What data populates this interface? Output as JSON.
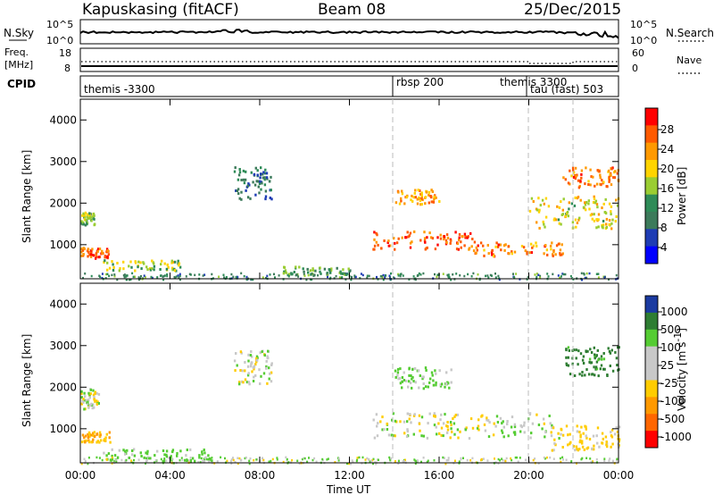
{
  "header": {
    "station": "Kapuskasing (fitACF)",
    "beam": "Beam 08",
    "date": "25/Dec/2015"
  },
  "sky_panel": {
    "left_label": "N.Sky",
    "right_label": "N.Search",
    "left_ticks": [
      "10^5",
      "10^0"
    ],
    "right_ticks": [
      "10^5",
      "10^0"
    ]
  },
  "freq_panel": {
    "left_label_1": "Freq.",
    "left_label_2": "[MHz]",
    "right_label": "Nave",
    "left_ticks": [
      "18",
      "8"
    ],
    "right_ticks": [
      "60",
      "0"
    ]
  },
  "cpid_panel": {
    "label": "CPID",
    "modes": [
      {
        "name": "themis -3300",
        "start_hour": 0.0
      },
      {
        "name": "rbsp 200",
        "start_hour": 14.0
      },
      {
        "name": "themis 3300",
        "start_hour": 20.0
      },
      {
        "name": "tau (fast) 503",
        "start_hour": 20.0
      }
    ]
  },
  "power_colorbar": {
    "label": "Power [dB]",
    "ticks": [
      "28",
      "24",
      "20",
      "16",
      "12",
      "8",
      "4"
    ],
    "colors": [
      "#ff0000",
      "#ff5a00",
      "#ff9900",
      "#ffd400",
      "#9acd32",
      "#2e8b57",
      "#3c7a5a",
      "#1e3cb4",
      "#0000ff"
    ]
  },
  "velocity_colorbar": {
    "label": "Velocity [m s",
    "label_sup": "-1",
    "label_end": "]",
    "ticks": [
      "1000",
      "500",
      "100",
      "25",
      "-25",
      "-100",
      "-500",
      "-1000"
    ],
    "colors": [
      "#1a3aa0",
      "#2e7d32",
      "#55cc33",
      "#c8c8c8",
      "#c8c8c8",
      "#ffcc00",
      "#ff9900",
      "#ff6600",
      "#ff0000"
    ]
  },
  "axes": {
    "y_label": "Slant Range [km]",
    "x_label": "Time UT",
    "y_ticks": [
      "1000",
      "2000",
      "3000",
      "4000"
    ],
    "x_ticks": [
      "00:00",
      "04:00",
      "08:00",
      "12:00",
      "16:00",
      "20:00",
      "00:00"
    ]
  },
  "chart_data": [
    {
      "type": "heatmap",
      "title": "Power [dB]",
      "xlabel": "Time UT",
      "ylabel": "Slant Range [km]",
      "xlim_hours": [
        0,
        24
      ],
      "ylim": [
        180,
        4500
      ],
      "colorbar_range": [
        0,
        30
      ],
      "features": [
        {
          "t0": 0.0,
          "t1": 1.3,
          "r0": 700,
          "r1": 950,
          "level": 26
        },
        {
          "t0": 0.0,
          "t1": 0.6,
          "r0": 1500,
          "r1": 1800,
          "level": 14
        },
        {
          "t0": 1.0,
          "t1": 4.5,
          "r0": 400,
          "r1": 650,
          "level": 16
        },
        {
          "t0": 6.8,
          "t1": 8.5,
          "r0": 2100,
          "r1": 2900,
          "level": 8
        },
        {
          "t0": 9.0,
          "t1": 12.0,
          "r0": 300,
          "r1": 500,
          "level": 12
        },
        {
          "t0": 13.0,
          "t1": 17.5,
          "r0": 900,
          "r1": 1350,
          "level": 26
        },
        {
          "t0": 14.0,
          "t1": 16.0,
          "r0": 2000,
          "r1": 2350,
          "level": 22
        },
        {
          "t0": 17.5,
          "t1": 21.5,
          "r0": 750,
          "r1": 1100,
          "level": 24
        },
        {
          "t0": 21.5,
          "t1": 24.0,
          "r0": 2400,
          "r1": 2900,
          "level": 24
        },
        {
          "t0": 20.0,
          "t1": 24.0,
          "r0": 1400,
          "r1": 2200,
          "level": 18
        }
      ]
    },
    {
      "type": "heatmap",
      "title": "Velocity [m s-1]",
      "xlabel": "Time UT",
      "ylabel": "Slant Range [km]",
      "xlim_hours": [
        0,
        24
      ],
      "ylim": [
        180,
        4500
      ],
      "colorbar_range": [
        -1000,
        1000
      ],
      "features": [
        {
          "t0": 0.0,
          "t1": 1.3,
          "r0": 700,
          "r1": 950,
          "level": -300
        },
        {
          "t0": 0.0,
          "t1": 0.8,
          "r0": 1500,
          "r1": 2000,
          "level": 0
        },
        {
          "t0": 1.0,
          "t1": 6.0,
          "r0": 250,
          "r1": 550,
          "level": 150
        },
        {
          "t0": 6.8,
          "t1": 8.5,
          "r0": 2100,
          "r1": 2900,
          "level": 0
        },
        {
          "t0": 13.0,
          "t1": 21.5,
          "r0": 800,
          "r1": 1400,
          "level": 0
        },
        {
          "t0": 14.0,
          "t1": 16.5,
          "r0": 2000,
          "r1": 2500,
          "level": 100
        },
        {
          "t0": 21.5,
          "t1": 24.0,
          "r0": 2300,
          "r1": 3000,
          "level": 400
        },
        {
          "t0": 21.0,
          "t1": 24.0,
          "r0": 500,
          "r1": 1100,
          "level": -150
        }
      ]
    }
  ]
}
